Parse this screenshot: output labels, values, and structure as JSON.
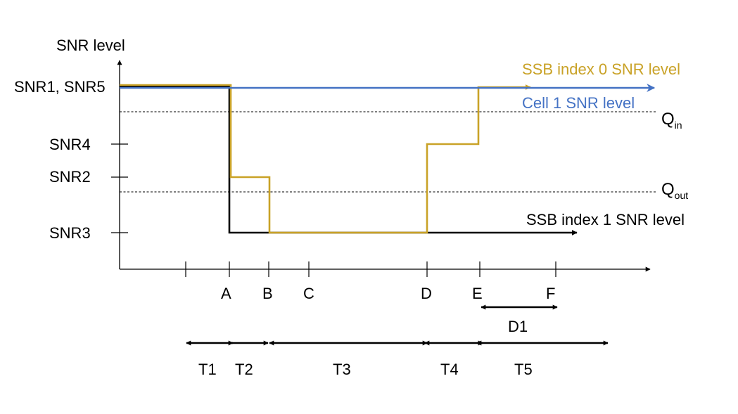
{
  "diagram": {
    "y_axis_label": "SNR level",
    "y_levels": {
      "snr1_snr5": "SNR1, SNR5",
      "snr4": "SNR4",
      "snr2": "SNR2",
      "snr3": "SNR3"
    },
    "thresholds": {
      "q_in": {
        "main": "Q",
        "sub": "in"
      },
      "q_out": {
        "main": "Q",
        "sub": "out"
      }
    },
    "x_points": [
      "A",
      "B",
      "C",
      "D",
      "E",
      "F"
    ],
    "duration": "D1",
    "periods": [
      "T1",
      "T2",
      "T3",
      "T4",
      "T5"
    ],
    "series": {
      "ssb0": {
        "label": "SSB index 0 SNR level",
        "color": "#C9A227"
      },
      "cell1": {
        "label": "Cell 1 SNR level",
        "color": "#4472C4"
      },
      "ssb1": {
        "label": "SSB index 1 SNR level",
        "color": "#000000"
      }
    }
  }
}
